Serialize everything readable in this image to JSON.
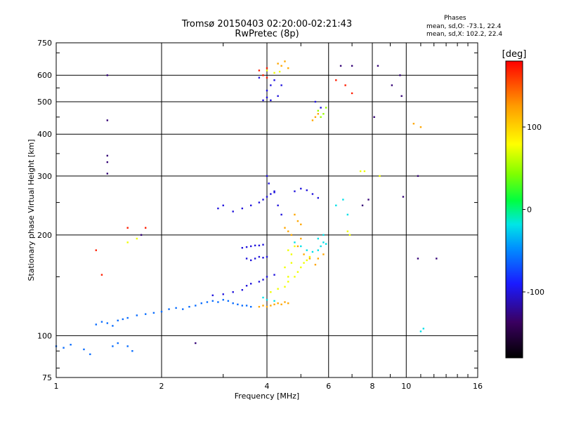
{
  "header": {
    "title": "Tromsø 20150403 02:20:00-02:21:43",
    "subtitle": "RwPretec (8p)"
  },
  "phase_box": {
    "heading": "Phases",
    "line_o": "mean, sd,O: -73.1, 22.4",
    "line_x": "mean, sd,X: 102.2, 22.4"
  },
  "colorbar": {
    "unit_label": "[deg]",
    "ticks": [
      {
        "value": 100,
        "label": "100"
      },
      {
        "value": 0,
        "label": "0"
      },
      {
        "value": -100,
        "label": "-100"
      }
    ],
    "range": [
      -180,
      180
    ]
  },
  "chart_data": {
    "type": "scatter",
    "xlabel": "Frequency [MHz]",
    "ylabel": "Stationary phase Virtual Height [km]",
    "x_scale": "log",
    "y_scale": "log",
    "xlim": [
      1,
      16
    ],
    "ylim": [
      75,
      750
    ],
    "x_ticks": [
      1,
      2,
      4,
      6,
      8,
      10,
      16
    ],
    "x_ticklabels": [
      "1",
      "2",
      "4",
      "6",
      "8",
      "10",
      "16"
    ],
    "y_ticks": [
      75,
      100,
      200,
      300,
      400,
      500,
      600,
      750
    ],
    "y_ticklabels": [
      "75",
      "100",
      "200",
      "300",
      "400",
      "500",
      "600",
      "750"
    ],
    "grid": true,
    "series": [
      {
        "color_value": -60,
        "points": [
          [
            1.0,
            93
          ],
          [
            1.05,
            92
          ],
          [
            1.1,
            94
          ],
          [
            1.2,
            91
          ],
          [
            1.25,
            88
          ],
          [
            1.3,
            108
          ],
          [
            1.35,
            110
          ],
          [
            1.4,
            109
          ],
          [
            1.45,
            107
          ],
          [
            1.5,
            111
          ],
          [
            1.55,
            112
          ],
          [
            1.6,
            113
          ],
          [
            1.7,
            115
          ],
          [
            1.8,
            116
          ],
          [
            1.9,
            117
          ],
          [
            2.0,
            118
          ],
          [
            2.1,
            120
          ],
          [
            2.2,
            121
          ],
          [
            2.3,
            120
          ],
          [
            2.4,
            122
          ],
          [
            2.5,
            123
          ],
          [
            2.6,
            125
          ],
          [
            2.7,
            126
          ],
          [
            2.8,
            127
          ],
          [
            2.9,
            126
          ],
          [
            3.0,
            128
          ],
          [
            3.1,
            127
          ],
          [
            3.2,
            125
          ],
          [
            3.3,
            124
          ],
          [
            3.4,
            123
          ],
          [
            3.5,
            123
          ],
          [
            3.6,
            122
          ],
          [
            1.6,
            93
          ],
          [
            1.65,
            90
          ],
          [
            1.5,
            95
          ],
          [
            1.45,
            93
          ]
        ]
      },
      {
        "color_value": -100,
        "points": [
          [
            2.8,
            132
          ],
          [
            3.0,
            133
          ],
          [
            3.2,
            135
          ],
          [
            3.4,
            137
          ],
          [
            3.5,
            141
          ],
          [
            3.6,
            143
          ],
          [
            3.8,
            145
          ],
          [
            3.9,
            147
          ],
          [
            4.0,
            150
          ],
          [
            4.2,
            152
          ],
          [
            3.5,
            170
          ],
          [
            3.6,
            168
          ],
          [
            3.7,
            170
          ],
          [
            3.8,
            172
          ],
          [
            3.9,
            171
          ],
          [
            4.0,
            172
          ],
          [
            3.4,
            183
          ],
          [
            3.5,
            184
          ],
          [
            3.6,
            185
          ],
          [
            3.7,
            186
          ],
          [
            3.8,
            186
          ],
          [
            3.9,
            187
          ],
          [
            3.2,
            235
          ],
          [
            3.4,
            240
          ],
          [
            3.6,
            245
          ],
          [
            3.8,
            250
          ],
          [
            3.9,
            255
          ],
          [
            4.0,
            260
          ],
          [
            4.1,
            265
          ],
          [
            4.2,
            268
          ],
          [
            3.0,
            245
          ],
          [
            2.9,
            240
          ],
          [
            4.8,
            270
          ],
          [
            5.0,
            275
          ],
          [
            5.2,
            272
          ],
          [
            5.4,
            265
          ],
          [
            5.6,
            258
          ],
          [
            4.0,
            540
          ],
          [
            4.1,
            560
          ],
          [
            4.2,
            580
          ],
          [
            3.8,
            590
          ],
          [
            4.3,
            520
          ],
          [
            4.4,
            560
          ],
          [
            4.0,
            515
          ],
          [
            3.9,
            505
          ],
          [
            4.1,
            505
          ],
          [
            5.5,
            500
          ],
          [
            5.7,
            480
          ],
          [
            4.0,
            300
          ],
          [
            4.05,
            285
          ],
          [
            4.2,
            270
          ],
          [
            4.3,
            245
          ],
          [
            4.4,
            230
          ]
        ]
      },
      {
        "color_value": -20,
        "points": [
          [
            4.8,
            190
          ],
          [
            5.0,
            185
          ],
          [
            5.2,
            180
          ],
          [
            5.4,
            178
          ],
          [
            5.6,
            180
          ],
          [
            5.7,
            185
          ],
          [
            5.8,
            190
          ],
          [
            5.9,
            188
          ],
          [
            5.6,
            195
          ],
          [
            5.8,
            200
          ],
          [
            3.9,
            130
          ],
          [
            4.0,
            128
          ],
          [
            4.2,
            127
          ],
          [
            6.3,
            245
          ],
          [
            6.6,
            255
          ],
          [
            6.8,
            230
          ],
          [
            11.0,
            103
          ],
          [
            11.2,
            105
          ]
        ]
      },
      {
        "color_value": 120,
        "points": [
          [
            3.8,
            122
          ],
          [
            3.9,
            123
          ],
          [
            4.0,
            122
          ],
          [
            4.1,
            123
          ],
          [
            4.2,
            124
          ],
          [
            4.3,
            125
          ],
          [
            4.4,
            124
          ],
          [
            4.5,
            126
          ],
          [
            4.6,
            125
          ],
          [
            4.8,
            230
          ],
          [
            4.9,
            220
          ],
          [
            5.0,
            215
          ],
          [
            4.5,
            210
          ],
          [
            4.6,
            205
          ],
          [
            4.7,
            200
          ],
          [
            5.0,
            195
          ],
          [
            4.9,
            185
          ],
          [
            5.1,
            175
          ],
          [
            5.3,
            170
          ],
          [
            5.5,
            163
          ],
          [
            5.6,
            170
          ],
          [
            5.8,
            175
          ],
          [
            4.3,
            650
          ],
          [
            4.4,
            640
          ],
          [
            4.5,
            660
          ],
          [
            4.6,
            630
          ],
          [
            5.4,
            440
          ],
          [
            5.5,
            450
          ],
          [
            5.6,
            460
          ],
          [
            10.5,
            430
          ],
          [
            11.0,
            420
          ]
        ]
      },
      {
        "color_value": 75,
        "points": [
          [
            4.1,
            135
          ],
          [
            4.3,
            138
          ],
          [
            4.5,
            140
          ],
          [
            4.6,
            145
          ],
          [
            4.8,
            150
          ],
          [
            4.9,
            155
          ],
          [
            5.0,
            160
          ],
          [
            5.1,
            165
          ],
          [
            5.2,
            168
          ],
          [
            5.3,
            172
          ],
          [
            4.7,
            175
          ],
          [
            4.6,
            180
          ],
          [
            4.8,
            185
          ],
          [
            4.7,
            165
          ],
          [
            4.5,
            160
          ],
          [
            4.6,
            150
          ],
          [
            1.6,
            190
          ],
          [
            1.7,
            195
          ],
          [
            6.8,
            205
          ],
          [
            6.9,
            200
          ],
          [
            7.4,
            310
          ],
          [
            7.6,
            310
          ],
          [
            8.4,
            300
          ],
          [
            4.2,
            610
          ],
          [
            4.0,
            620
          ],
          [
            4.35,
            615
          ]
        ]
      },
      {
        "color_value": 170,
        "points": [
          [
            3.9,
            600
          ],
          [
            4.0,
            630
          ],
          [
            3.8,
            620
          ],
          [
            4.0,
            590
          ],
          [
            1.3,
            180
          ],
          [
            1.6,
            210
          ],
          [
            1.8,
            210
          ],
          [
            6.3,
            580
          ],
          [
            6.7,
            560
          ],
          [
            7.0,
            530
          ],
          [
            1.35,
            152
          ]
        ]
      },
      {
        "color_value": 50,
        "points": [
          [
            5.7,
            450
          ],
          [
            5.8,
            460
          ],
          [
            5.9,
            480
          ],
          [
            5.6,
            470
          ]
        ]
      },
      {
        "color_value": -130,
        "points": [
          [
            1.4,
            600
          ],
          [
            1.4,
            440
          ],
          [
            1.4,
            345
          ],
          [
            1.4,
            330
          ],
          [
            1.4,
            305
          ],
          [
            1.75,
            200
          ],
          [
            2.5,
            95
          ],
          [
            8.1,
            450
          ],
          [
            9.1,
            560
          ],
          [
            9.6,
            600
          ],
          [
            9.7,
            520
          ],
          [
            10.8,
            170
          ],
          [
            12.2,
            170
          ],
          [
            8.3,
            640
          ],
          [
            6.5,
            640
          ],
          [
            7.0,
            640
          ],
          [
            7.5,
            245
          ],
          [
            7.8,
            255
          ],
          [
            9.8,
            260
          ],
          [
            10.8,
            300
          ]
        ]
      }
    ]
  }
}
